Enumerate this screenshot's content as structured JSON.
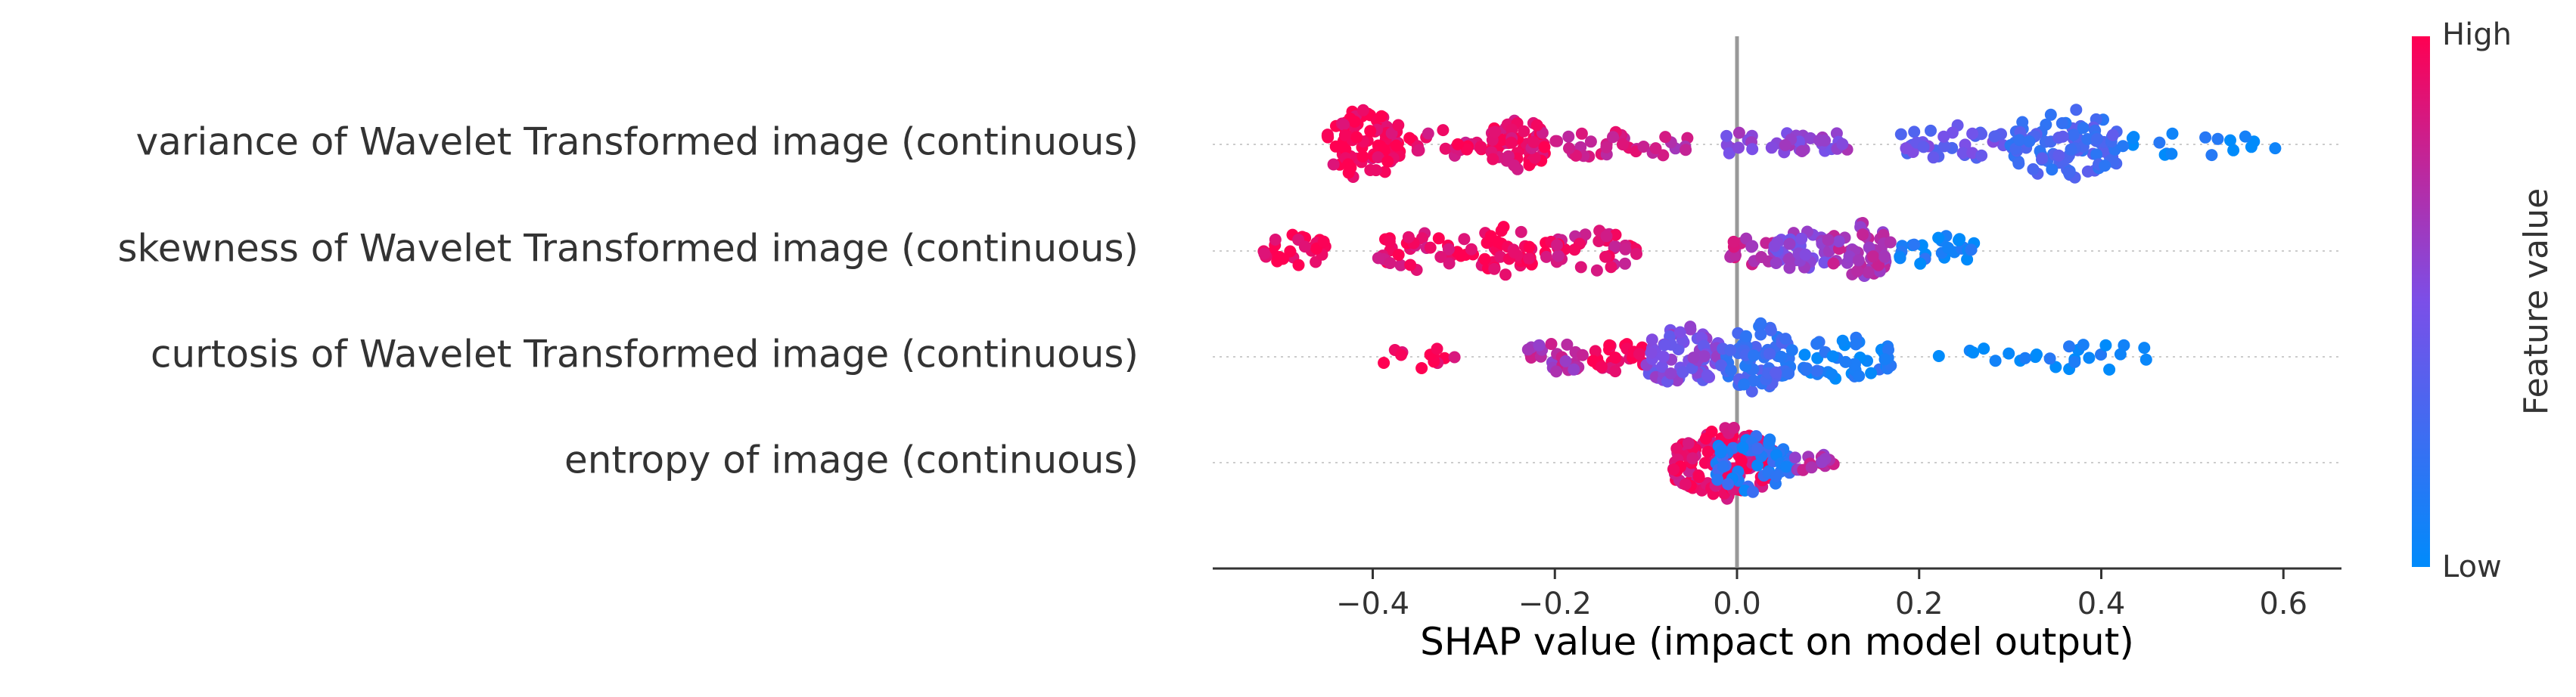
{
  "chart_data": {
    "type": "scatter",
    "subtype": "shap-beeswarm",
    "title": "",
    "xlabel": "SHAP value (impact on model output)",
    "ylabel": "",
    "xlim": [
      -0.58,
      0.66
    ],
    "xticks": [
      -0.4,
      -0.2,
      0.0,
      0.2,
      0.4,
      0.6
    ],
    "xtick_labels": [
      "−0.4",
      "−0.2",
      "0.0",
      "0.2",
      "0.4",
      "0.6"
    ],
    "zero_line": 0.0,
    "grid": "dotted horizontal per feature row",
    "features": [
      {
        "name": "variance of Wavelet Transformed image (continuous)",
        "clusters": [
          {
            "x_min": -0.45,
            "x_max": -0.37,
            "count": 90,
            "feature_value": 0.97
          },
          {
            "x_min": -0.36,
            "x_max": -0.28,
            "count": 22,
            "feature_value": 0.9
          },
          {
            "x_min": -0.27,
            "x_max": -0.21,
            "count": 60,
            "feature_value": 0.93
          },
          {
            "x_min": -0.2,
            "x_max": -0.11,
            "count": 25,
            "feature_value": 0.82
          },
          {
            "x_min": -0.11,
            "x_max": -0.05,
            "count": 10,
            "feature_value": 0.72
          },
          {
            "x_min": -0.02,
            "x_max": 0.08,
            "count": 25,
            "feature_value": 0.55
          },
          {
            "x_min": 0.08,
            "x_max": 0.14,
            "count": 12,
            "feature_value": 0.58
          },
          {
            "x_min": 0.18,
            "x_max": 0.3,
            "count": 35,
            "feature_value": 0.42
          },
          {
            "x_min": 0.3,
            "x_max": 0.42,
            "count": 95,
            "feature_value": 0.28
          },
          {
            "x_min": 0.42,
            "x_max": 0.6,
            "count": 18,
            "feature_value": 0.05
          }
        ]
      },
      {
        "name": "skewness of Wavelet Transformed image (continuous)",
        "clusters": [
          {
            "x_min": -0.52,
            "x_max": -0.45,
            "count": 28,
            "feature_value": 0.99
          },
          {
            "x_min": -0.4,
            "x_max": -0.3,
            "count": 32,
            "feature_value": 0.92
          },
          {
            "x_min": -0.3,
            "x_max": -0.21,
            "count": 45,
            "feature_value": 0.95
          },
          {
            "x_min": -0.21,
            "x_max": -0.11,
            "count": 40,
            "feature_value": 0.88
          },
          {
            "x_min": -0.01,
            "x_max": 0.05,
            "count": 20,
            "feature_value": 0.75
          },
          {
            "x_min": 0.04,
            "x_max": 0.1,
            "count": 40,
            "feature_value": 0.55
          },
          {
            "x_min": 0.1,
            "x_max": 0.17,
            "count": 60,
            "feature_value": 0.68
          },
          {
            "x_min": 0.17,
            "x_max": 0.27,
            "count": 25,
            "feature_value": 0.08
          }
        ]
      },
      {
        "name": "curtosis of Wavelet Transformed image (continuous)",
        "clusters": [
          {
            "x_min": -0.39,
            "x_max": -0.31,
            "count": 12,
            "feature_value": 0.97
          },
          {
            "x_min": -0.23,
            "x_max": -0.16,
            "count": 25,
            "feature_value": 0.7
          },
          {
            "x_min": -0.16,
            "x_max": -0.1,
            "count": 25,
            "feature_value": 0.95
          },
          {
            "x_min": -0.1,
            "x_max": -0.02,
            "count": 70,
            "feature_value": 0.5
          },
          {
            "x_min": -0.02,
            "x_max": 0.06,
            "count": 80,
            "feature_value": 0.25
          },
          {
            "x_min": 0.06,
            "x_max": 0.17,
            "count": 45,
            "feature_value": 0.1
          },
          {
            "x_min": 0.22,
            "x_max": 0.3,
            "count": 6,
            "feature_value": 0.05
          },
          {
            "x_min": 0.3,
            "x_max": 0.47,
            "count": 20,
            "feature_value": 0.04
          }
        ]
      },
      {
        "name": "entropy of image (continuous)",
        "clusters": [
          {
            "x_min": -0.07,
            "x_max": 0.04,
            "count": 140,
            "feature_value": 0.9
          },
          {
            "x_min": -0.03,
            "x_max": 0.06,
            "count": 60,
            "feature_value": 0.15
          },
          {
            "x_min": 0.06,
            "x_max": 0.11,
            "count": 15,
            "feature_value": 0.7
          }
        ]
      }
    ],
    "colorbar": {
      "title": "Feature value",
      "high_label": "High",
      "low_label": "Low",
      "high_color": "#ff0052",
      "mid_color": "#7b4fe8",
      "low_color": "#008bfb"
    }
  }
}
